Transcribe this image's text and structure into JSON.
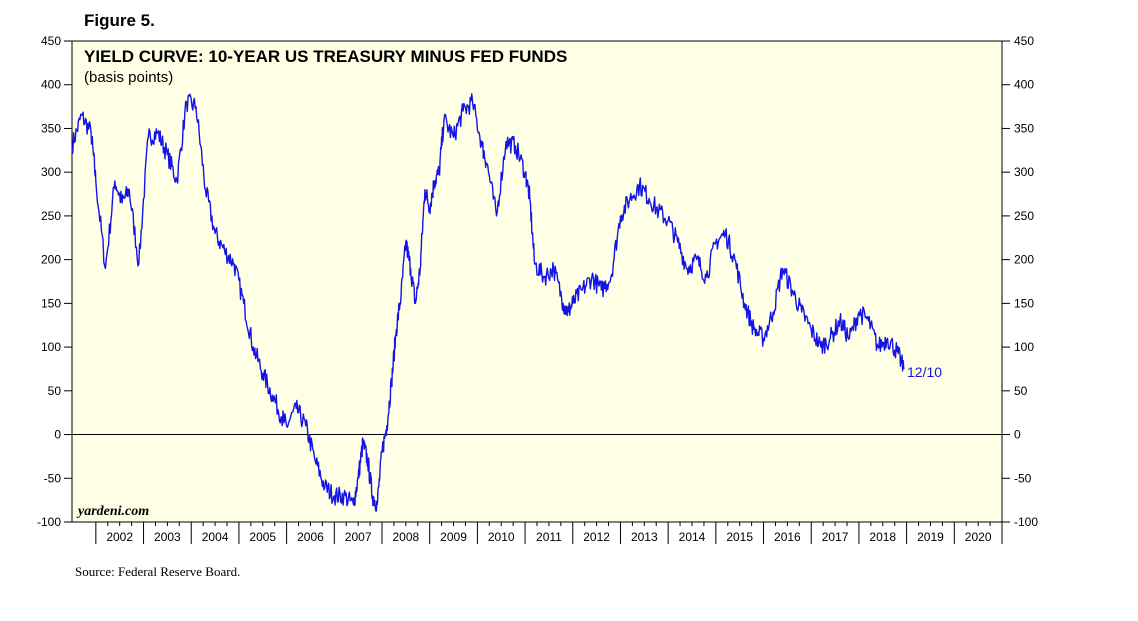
{
  "figure_label": "Figure 5.",
  "source": "Source: Federal Reserve Board.",
  "watermark": "yardeni.com",
  "colors": {
    "line": "#1414e6",
    "plot_bg": "#ffffe5",
    "end_label": "#1414e6"
  },
  "chart_data": {
    "type": "line",
    "title": "YIELD CURVE: 10-YEAR US TREASURY MINUS FED FUNDS",
    "subtitle": "(basis points)",
    "xlabel": "",
    "ylabel": "",
    "ylim": [
      -100,
      450
    ],
    "xlim": [
      2001.5,
      2021.0
    ],
    "y_ticks": [
      -100,
      -50,
      0,
      50,
      100,
      150,
      200,
      250,
      300,
      350,
      400,
      450
    ],
    "y_tick_labels": [
      "-100",
      "-50",
      "0",
      "50",
      "100",
      "150",
      "200",
      "250",
      "300",
      "350",
      "400",
      "450"
    ],
    "x_tick_labels": [
      "2002",
      "2003",
      "2004",
      "2005",
      "2006",
      "2007",
      "2008",
      "2009",
      "2010",
      "2011",
      "2012",
      "2013",
      "2014",
      "2015",
      "2016",
      "2017",
      "2018",
      "2019",
      "2020"
    ],
    "reference_line": 0,
    "end_label": "12/10",
    "series": [
      {
        "name": "10-Year US Treasury minus Fed Funds",
        "x": [
          2001.5,
          2001.7,
          2001.9,
          2002.0,
          2002.2,
          2002.4,
          2002.55,
          2002.7,
          2002.9,
          2003.1,
          2003.3,
          2003.5,
          2003.7,
          2003.9,
          2004.1,
          2004.3,
          2004.5,
          2004.7,
          2004.9,
          2005.1,
          2005.3,
          2005.5,
          2005.7,
          2005.9,
          2006.0,
          2006.2,
          2006.4,
          2006.6,
          2006.8,
          2007.0,
          2007.2,
          2007.4,
          2007.5,
          2007.6,
          2007.7,
          2007.8,
          2007.9,
          2008.0,
          2008.1,
          2008.2,
          2008.3,
          2008.4,
          2008.5,
          2008.6,
          2008.7,
          2008.8,
          2008.9,
          2009.0,
          2009.1,
          2009.2,
          2009.3,
          2009.5,
          2009.7,
          2009.9,
          2010.1,
          2010.2,
          2010.4,
          2010.6,
          2010.8,
          2011.0,
          2011.1,
          2011.2,
          2011.4,
          2011.6,
          2011.8,
          2011.9,
          2012.0,
          2012.2,
          2012.4,
          2012.6,
          2012.8,
          2013.0,
          2013.2,
          2013.4,
          2013.6,
          2013.8,
          2014.0,
          2014.2,
          2014.4,
          2014.6,
          2014.8,
          2015.0,
          2015.2,
          2015.4,
          2015.6,
          2015.8,
          2016.0,
          2016.2,
          2016.4,
          2016.6,
          2016.8,
          2017.0,
          2017.2,
          2017.4,
          2017.6,
          2017.8,
          2018.0,
          2018.2,
          2018.4,
          2018.6,
          2018.8,
          2018.94
        ],
        "values": [
          330,
          365,
          345,
          290,
          190,
          290,
          265,
          280,
          195,
          340,
          345,
          320,
          290,
          380,
          375,
          280,
          230,
          210,
          195,
          150,
          100,
          70,
          45,
          20,
          10,
          30,
          10,
          -30,
          -60,
          -70,
          -70,
          -80,
          -50,
          -10,
          -30,
          -70,
          -80,
          -20,
          10,
          60,
          120,
          160,
          220,
          190,
          150,
          190,
          280,
          260,
          290,
          300,
          360,
          340,
          370,
          380,
          330,
          310,
          250,
          335,
          330,
          300,
          270,
          195,
          180,
          190,
          150,
          140,
          150,
          165,
          180,
          165,
          180,
          250,
          270,
          285,
          270,
          255,
          245,
          220,
          190,
          200,
          180,
          220,
          230,
          200,
          150,
          120,
          110,
          140,
          190,
          165,
          140,
          120,
          100,
          110,
          130,
          110,
          140,
          130,
          100,
          110,
          95,
          75
        ]
      }
    ]
  }
}
